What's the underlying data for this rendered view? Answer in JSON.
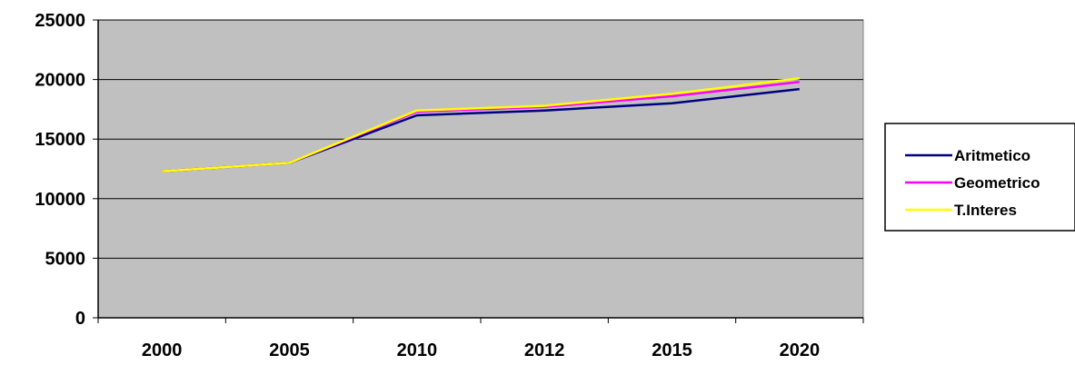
{
  "chart_data": {
    "type": "line",
    "categories": [
      "2000",
      "2005",
      "2010",
      "2012",
      "2015",
      "2020"
    ],
    "series": [
      {
        "name": "Aritmetico",
        "values": [
          12300,
          13000,
          17000,
          17400,
          18000,
          19200
        ],
        "color": "#000080"
      },
      {
        "name": "Geometrico",
        "values": [
          12300,
          13000,
          17300,
          17700,
          18600,
          19800
        ],
        "color": "#ff00ff"
      },
      {
        "name": "T.Interes",
        "values": [
          12300,
          13000,
          17400,
          17800,
          18800,
          20100
        ],
        "color": "#ffff00"
      }
    ],
    "ylim": [
      0,
      25000
    ],
    "yticks": [
      0,
      5000,
      10000,
      15000,
      20000,
      25000
    ],
    "grid": "horizontal",
    "legend": "right",
    "plot_background": "#c0c0c0"
  }
}
